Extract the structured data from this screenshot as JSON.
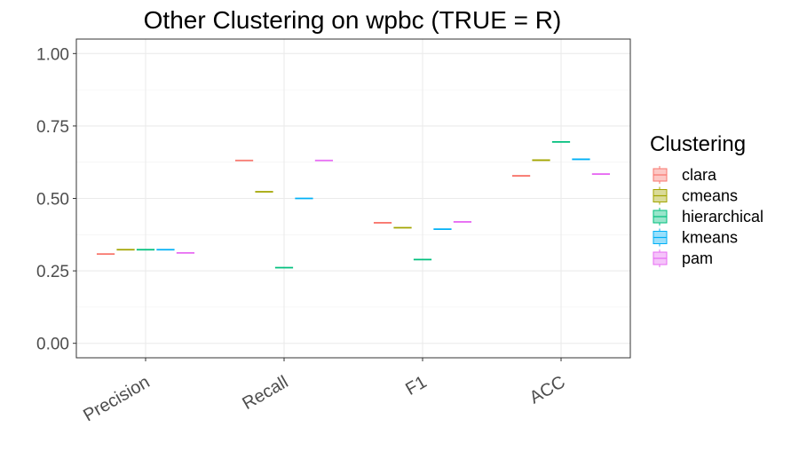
{
  "chart_data": {
    "type": "boxplot",
    "title": "Other Clustering on wpbc (TRUE = R)",
    "xlabel": "",
    "ylabel": "",
    "categories": [
      "Precision",
      "Recall",
      "F1",
      "ACC"
    ],
    "ylim": [
      -0.05,
      1.05
    ],
    "yticks": [
      "0.00",
      "0.25",
      "0.50",
      "0.75",
      "1.00"
    ],
    "grid": true,
    "legend": {
      "title": "Clustering",
      "position": "right"
    },
    "series": [
      {
        "name": "clara",
        "color": "#F8766D",
        "values": [
          0.308,
          0.631,
          0.416,
          0.578
        ]
      },
      {
        "name": "cmeans",
        "color": "#A3A500",
        "values": [
          0.323,
          0.523,
          0.399,
          0.632
        ]
      },
      {
        "name": "hierarchical",
        "color": "#00BF7D",
        "values": [
          0.323,
          0.261,
          0.289,
          0.695
        ]
      },
      {
        "name": "kmeans",
        "color": "#00B0F6",
        "values": [
          0.323,
          0.5,
          0.394,
          0.635
        ]
      },
      {
        "name": "pam",
        "color": "#E76BF3",
        "values": [
          0.312,
          0.631,
          0.419,
          0.584
        ]
      }
    ]
  }
}
